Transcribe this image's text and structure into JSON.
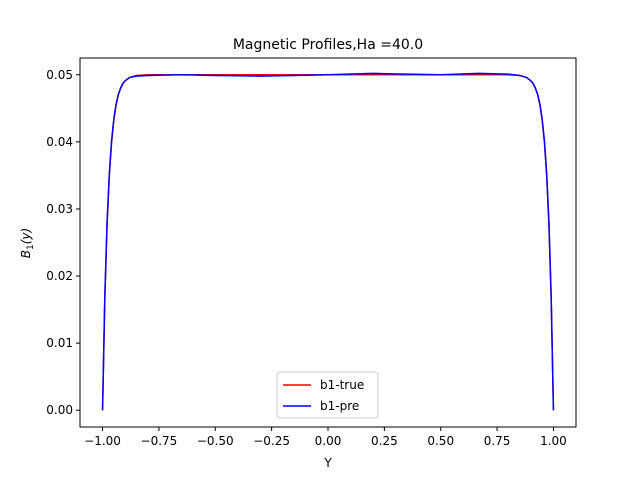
{
  "chart_data": {
    "type": "line",
    "title": "Magnetic Profiles,Ha =40.0",
    "xlabel": "Y",
    "ylabel_main": "B",
    "ylabel_sub": "1",
    "ylabel_suffix": "(y)",
    "xlim": [
      -1.1,
      1.1
    ],
    "ylim": [
      -0.0025,
      0.0525
    ],
    "xticks": [
      -1.0,
      -0.75,
      -0.5,
      -0.25,
      0.0,
      0.25,
      0.5,
      0.75,
      1.0
    ],
    "xtick_labels": [
      "−1.00",
      "−0.75",
      "−0.50",
      "−0.25",
      "0.00",
      "0.25",
      "0.50",
      "0.75",
      "1.00"
    ],
    "yticks": [
      0.0,
      0.01,
      0.02,
      0.03,
      0.04,
      0.05
    ],
    "ytick_labels": [
      "0.00",
      "0.01",
      "0.02",
      "0.03",
      "0.04",
      "0.05"
    ],
    "grid": false,
    "legend_position": "bottom-center",
    "series": [
      {
        "name": "b1-true",
        "color": "#ff0000",
        "x": [
          -1.0,
          -0.99,
          -0.98,
          -0.97,
          -0.96,
          -0.95,
          -0.94,
          -0.93,
          -0.92,
          -0.91,
          -0.9,
          -0.88,
          -0.85,
          -0.8,
          -0.7,
          -0.5,
          -0.25,
          0.0,
          0.25,
          0.5,
          0.7,
          0.8,
          0.85,
          0.88,
          0.9,
          0.91,
          0.92,
          0.93,
          0.94,
          0.95,
          0.96,
          0.97,
          0.98,
          0.99,
          1.0
        ],
        "y": [
          0.0,
          0.0165,
          0.0276,
          0.0349,
          0.0399,
          0.0432,
          0.0455,
          0.047,
          0.048,
          0.0487,
          0.0491,
          0.0496,
          0.0499,
          0.05,
          0.05,
          0.05,
          0.05,
          0.05,
          0.05,
          0.05,
          0.05,
          0.05,
          0.0499,
          0.0496,
          0.0491,
          0.0487,
          0.048,
          0.047,
          0.0455,
          0.0432,
          0.0399,
          0.0349,
          0.0276,
          0.0165,
          0.0
        ]
      },
      {
        "name": "b1-pre",
        "color": "#0000ff",
        "x": [
          -1.0,
          -0.99,
          -0.98,
          -0.97,
          -0.96,
          -0.95,
          -0.94,
          -0.93,
          -0.92,
          -0.91,
          -0.9,
          -0.88,
          -0.85,
          -0.8,
          -0.65,
          -0.5,
          -0.3,
          -0.15,
          0.0,
          0.2,
          0.35,
          0.5,
          0.67,
          0.8,
          0.85,
          0.88,
          0.9,
          0.91,
          0.92,
          0.93,
          0.94,
          0.95,
          0.96,
          0.97,
          0.98,
          0.99,
          1.0
        ],
        "y": [
          0.0,
          0.0168,
          0.028,
          0.0352,
          0.0401,
          0.0434,
          0.0456,
          0.0471,
          0.048,
          0.0487,
          0.0491,
          0.0496,
          0.0498,
          0.0499,
          0.05,
          0.0499,
          0.0498,
          0.0499,
          0.05,
          0.0502,
          0.0501,
          0.05,
          0.0502,
          0.0501,
          0.0499,
          0.0496,
          0.0491,
          0.0487,
          0.048,
          0.0471,
          0.0456,
          0.0434,
          0.0401,
          0.0352,
          0.028,
          0.0168,
          0.0
        ]
      }
    ]
  }
}
